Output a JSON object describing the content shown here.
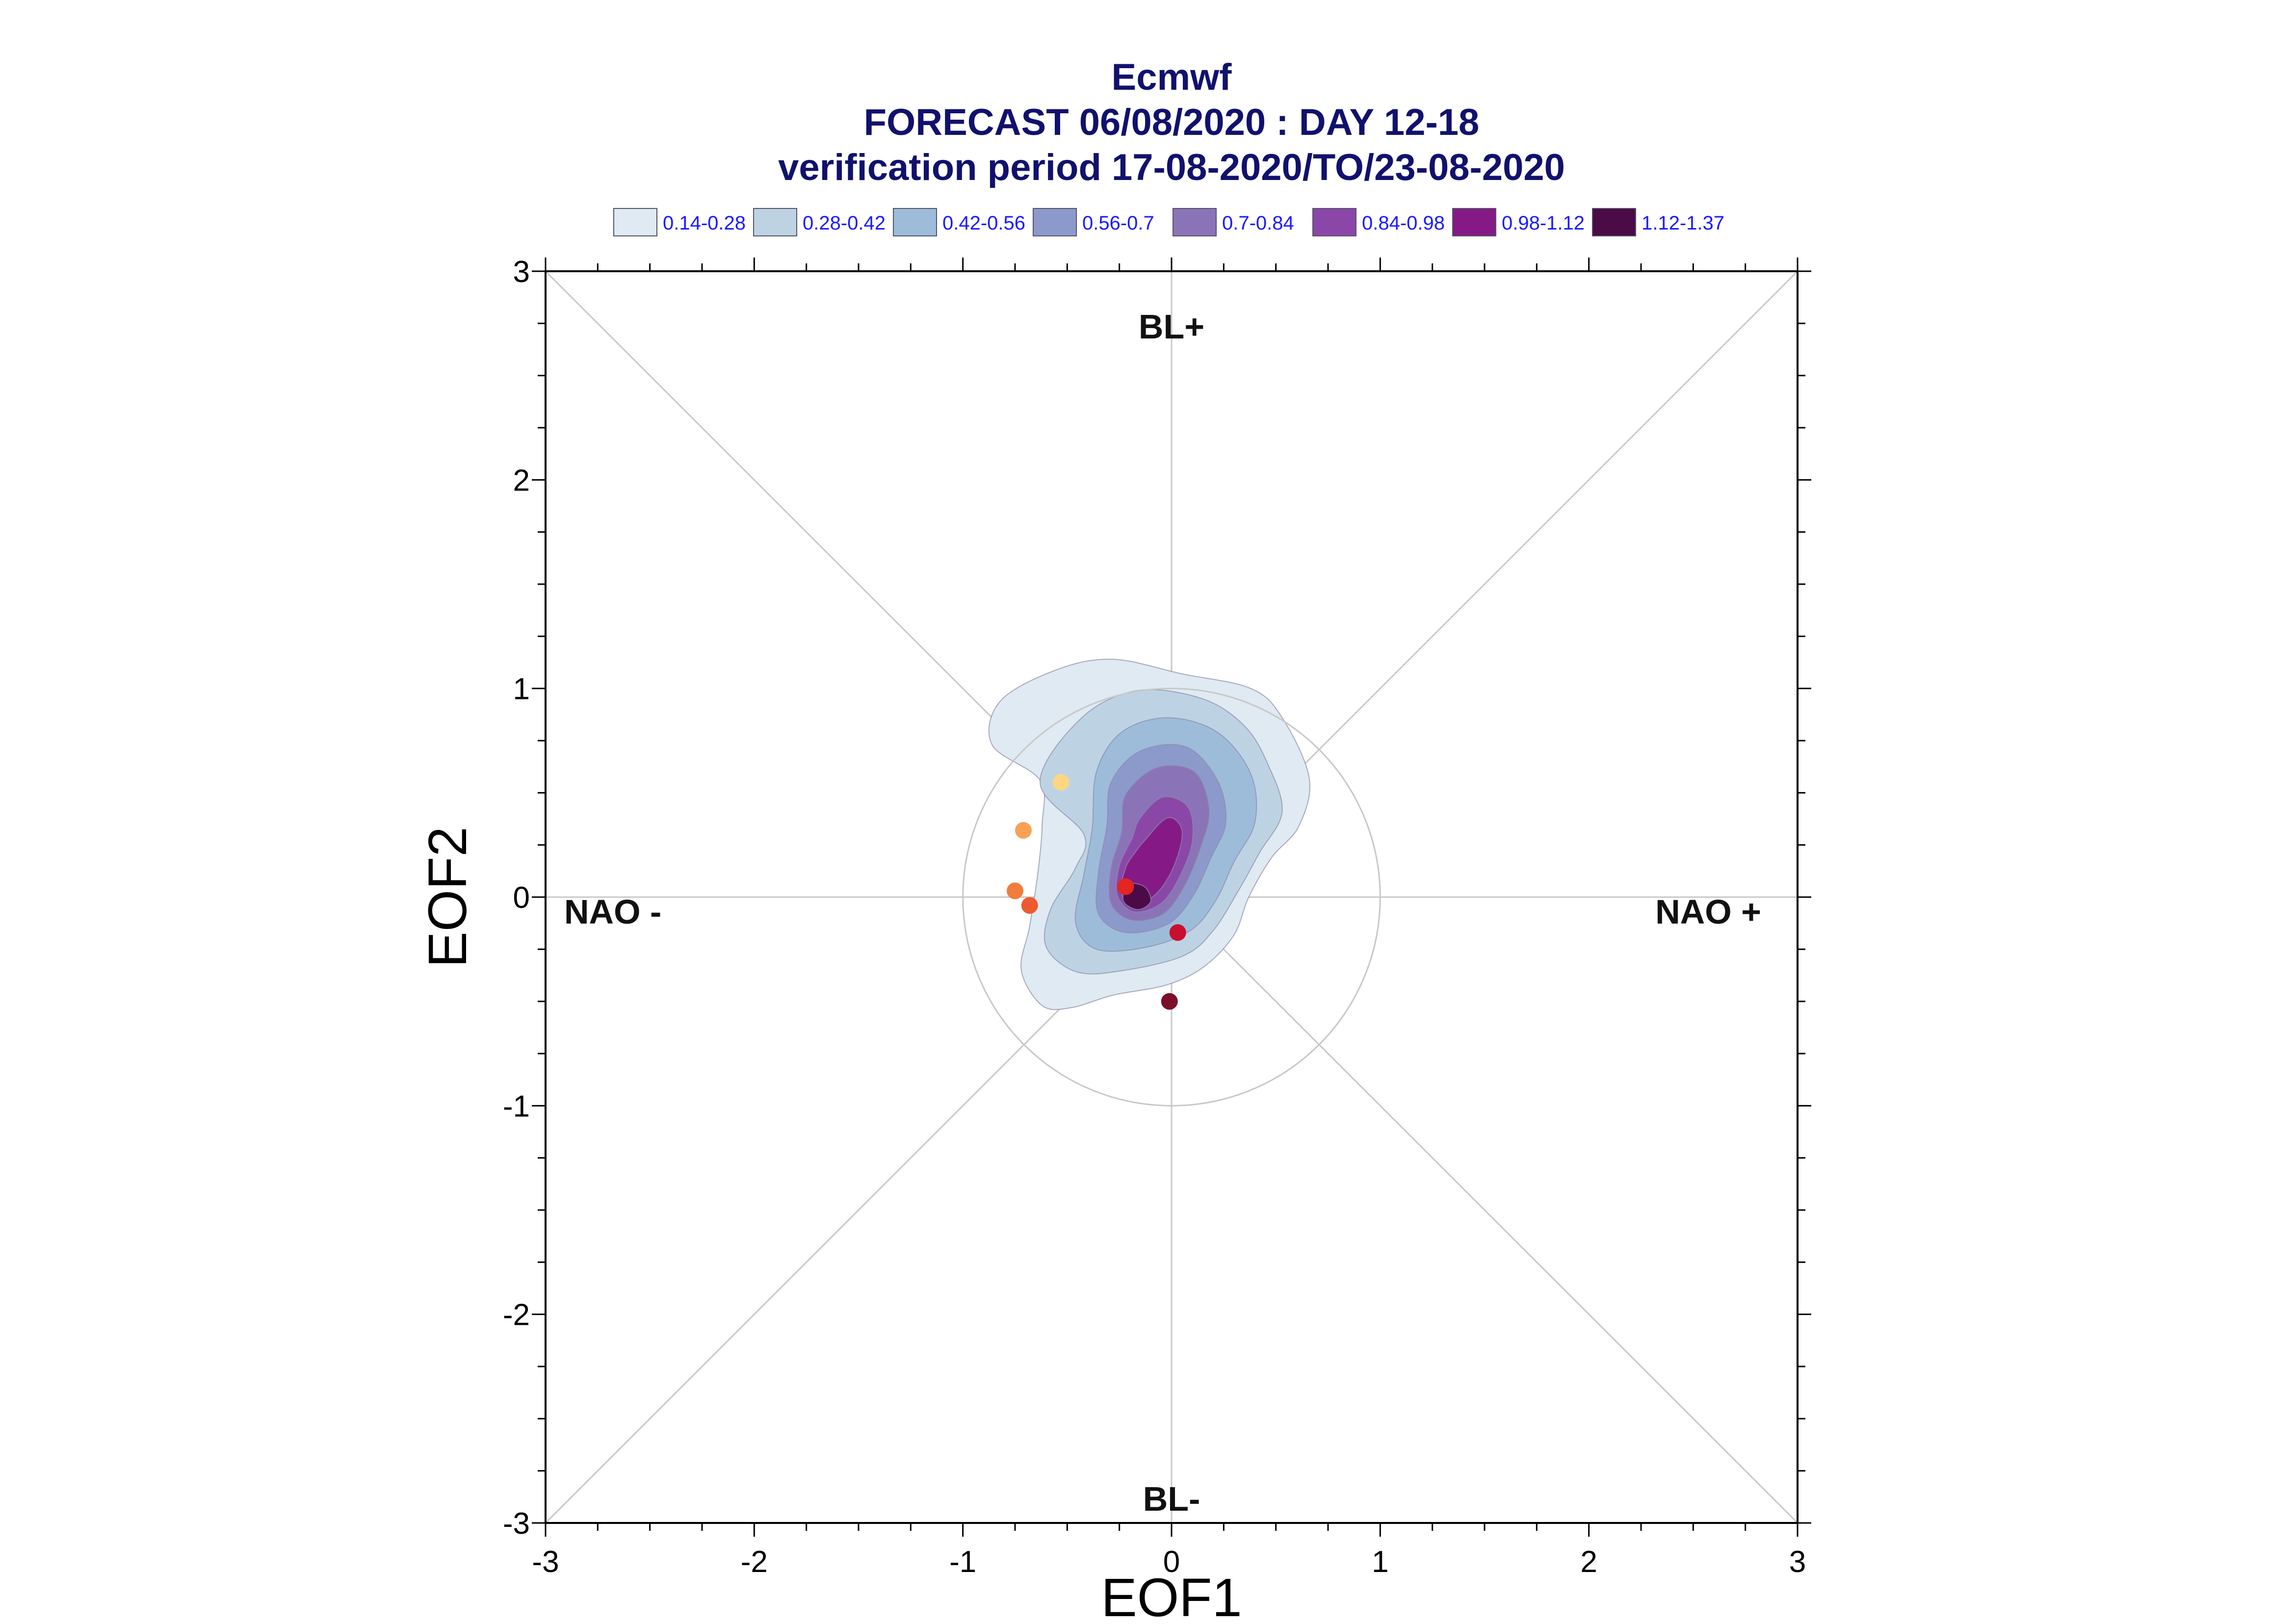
{
  "chart_data": {
    "type": "scatter",
    "title": "Ecmwf",
    "subtitle_lines": [
      "FORECAST 06/08/2020 : DAY 12-18",
      "verification period 17-08-2020/TO/23-08-2020"
    ],
    "xlabel": "EOF1",
    "ylabel": "EOF2",
    "xlim": [
      -3,
      3
    ],
    "ylim": [
      -3,
      3
    ],
    "x_ticks": [
      "-3",
      "-2",
      "-1",
      "0",
      "1",
      "2",
      "3"
    ],
    "y_ticks": [
      "3",
      "2",
      "1",
      "0",
      "-1",
      "-2",
      "-3"
    ],
    "region_labels": {
      "top": "BL+",
      "bottom": "BL-",
      "left": "NAO -",
      "right": "NAO +"
    },
    "reference_circle_radius": 1.0,
    "legend": [
      {
        "label": "0.14-0.28",
        "color": "#dfeaf2"
      },
      {
        "label": "0.28-0.42",
        "color": "#bdd3e4"
      },
      {
        "label": "0.42-0.56",
        "color": "#9dbcda"
      },
      {
        "label": "0.56-0.7",
        "color": "#8c9acb"
      },
      {
        "label": "0.7-0.84",
        "color": "#8b73b8"
      },
      {
        "label": "0.84-0.98",
        "color": "#8a47a8"
      },
      {
        "label": "0.98-1.12",
        "color": "#851a86"
      },
      {
        "label": "1.12-1.37",
        "color": "#4b0b47"
      }
    ],
    "density_levels": [
      {
        "level": "0.14-0.28",
        "outline": [
          [
            -0.63,
            0.56
          ],
          [
            -0.86,
            0.73
          ],
          [
            -0.82,
            0.94
          ],
          [
            -0.55,
            1.09
          ],
          [
            -0.28,
            1.14
          ],
          [
            0.05,
            1.07
          ],
          [
            0.38,
            1.0
          ],
          [
            0.53,
            0.86
          ],
          [
            0.66,
            0.57
          ],
          [
            0.61,
            0.34
          ],
          [
            0.48,
            0.19
          ],
          [
            0.37,
            0.0
          ],
          [
            0.3,
            -0.18
          ],
          [
            0.16,
            -0.33
          ],
          [
            -0.02,
            -0.42
          ],
          [
            -0.28,
            -0.47
          ],
          [
            -0.48,
            -0.53
          ],
          [
            -0.62,
            -0.52
          ],
          [
            -0.72,
            -0.35
          ],
          [
            -0.68,
            -0.14
          ],
          [
            -0.64,
            0.12
          ],
          [
            -0.62,
            0.35
          ]
        ]
      },
      {
        "level": "0.28-0.42",
        "outline": [
          [
            -0.63,
            0.55
          ],
          [
            -0.43,
            0.86
          ],
          [
            -0.16,
            0.99
          ],
          [
            0.15,
            0.95
          ],
          [
            0.35,
            0.82
          ],
          [
            0.46,
            0.64
          ],
          [
            0.53,
            0.41
          ],
          [
            0.42,
            0.21
          ],
          [
            0.32,
            0.03
          ],
          [
            0.2,
            -0.16
          ],
          [
            0.06,
            -0.28
          ],
          [
            -0.22,
            -0.35
          ],
          [
            -0.45,
            -0.36
          ],
          [
            -0.6,
            -0.24
          ],
          [
            -0.58,
            -0.06
          ],
          [
            -0.46,
            0.14
          ],
          [
            -0.42,
            0.3
          ]
        ]
      },
      {
        "level": "0.42-0.56",
        "outline": [
          [
            -0.36,
            0.6
          ],
          [
            -0.24,
            0.79
          ],
          [
            -0.02,
            0.86
          ],
          [
            0.22,
            0.79
          ],
          [
            0.38,
            0.59
          ],
          [
            0.4,
            0.36
          ],
          [
            0.3,
            0.17
          ],
          [
            0.21,
            -0.02
          ],
          [
            0.09,
            -0.16
          ],
          [
            -0.12,
            -0.24
          ],
          [
            -0.36,
            -0.25
          ],
          [
            -0.46,
            -0.12
          ],
          [
            -0.42,
            0.11
          ],
          [
            -0.38,
            0.33
          ]
        ]
      },
      {
        "level": "0.56-0.7",
        "outline": [
          [
            -0.29,
            0.55
          ],
          [
            -0.15,
            0.7
          ],
          [
            0.07,
            0.72
          ],
          [
            0.22,
            0.56
          ],
          [
            0.26,
            0.36
          ],
          [
            0.19,
            0.19
          ],
          [
            0.1,
            0.0
          ],
          [
            -0.02,
            -0.13
          ],
          [
            -0.22,
            -0.17
          ],
          [
            -0.35,
            -0.08
          ],
          [
            -0.35,
            0.12
          ],
          [
            -0.31,
            0.34
          ]
        ]
      },
      {
        "level": "0.7-0.84",
        "outline": [
          [
            -0.22,
            0.49
          ],
          [
            -0.07,
            0.62
          ],
          [
            0.11,
            0.6
          ],
          [
            0.18,
            0.42
          ],
          [
            0.14,
            0.24
          ],
          [
            0.06,
            0.05
          ],
          [
            -0.04,
            -0.08
          ],
          [
            -0.19,
            -0.11
          ],
          [
            -0.29,
            -0.03
          ],
          [
            -0.29,
            0.14
          ],
          [
            -0.24,
            0.31
          ]
        ]
      },
      {
        "level": "0.84-0.98",
        "outline": [
          [
            -0.15,
            0.38
          ],
          [
            -0.04,
            0.48
          ],
          [
            0.08,
            0.43
          ],
          [
            0.1,
            0.27
          ],
          [
            0.04,
            0.1
          ],
          [
            -0.05,
            -0.03
          ],
          [
            -0.18,
            -0.07
          ],
          [
            -0.26,
            0.01
          ],
          [
            -0.25,
            0.15
          ],
          [
            -0.19,
            0.28
          ]
        ]
      },
      {
        "level": "0.98-1.12",
        "outline": [
          [
            -0.13,
            0.27
          ],
          [
            -0.02,
            0.38
          ],
          [
            0.05,
            0.32
          ],
          [
            0.02,
            0.17
          ],
          [
            -0.06,
            0.03
          ],
          [
            -0.17,
            -0.04
          ],
          [
            -0.24,
            0.02
          ],
          [
            -0.22,
            0.14
          ],
          [
            -0.17,
            0.22
          ]
        ]
      },
      {
        "level": "1.12-1.37",
        "outline": [
          [
            -0.21,
            0.06
          ],
          [
            -0.13,
            0.05
          ],
          [
            -0.1,
            -0.02
          ],
          [
            -0.16,
            -0.06
          ],
          [
            -0.23,
            -0.02
          ]
        ]
      }
    ],
    "points": [
      {
        "x": -0.53,
        "y": 0.55,
        "color": "#fdd684"
      },
      {
        "x": -0.71,
        "y": 0.32,
        "color": "#f8a157"
      },
      {
        "x": -0.75,
        "y": 0.03,
        "color": "#f07d3c"
      },
      {
        "x": -0.68,
        "y": -0.04,
        "color": "#ee5a2f"
      },
      {
        "x": -0.22,
        "y": 0.05,
        "color": "#e5251f"
      },
      {
        "x": 0.03,
        "y": -0.17,
        "color": "#c8102e"
      },
      {
        "x": -0.01,
        "y": -0.5,
        "color": "#7b0f27"
      }
    ]
  }
}
